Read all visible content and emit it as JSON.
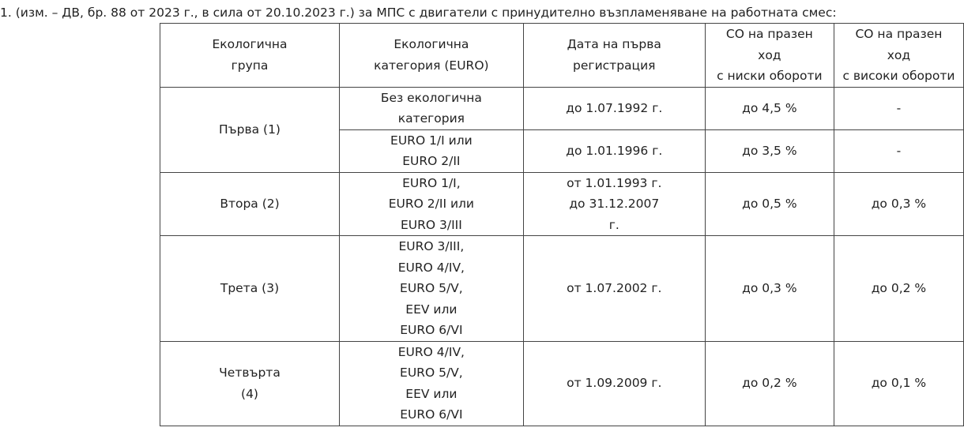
{
  "intro": "1. (изм. – ДВ, бр. 88 от 2023 г., в сила от 20.10.2023 г.) за МПС с двигатели с принудително възпламеняване на работната смес:",
  "table": {
    "header": [
      [
        "Екологична",
        "група"
      ],
      [
        "Екологична",
        "категория (EURO)"
      ],
      [
        "Дата на първа",
        "регистрация"
      ],
      [
        "CO на празен",
        "ход",
        "с ниски обороти"
      ],
      [
        "CO на празен",
        "ход",
        "с високи обороти"
      ]
    ],
    "rows": [
      [
        [
          "Първа (1)"
        ],
        [
          "Без екологична",
          "категория"
        ],
        [
          "до 1.07.1992 г."
        ],
        [
          "до 4,5 %"
        ],
        [
          "-"
        ]
      ],
      [
        [
          "EURO 1/I или",
          "EURO 2/II"
        ],
        [
          "до 1.01.1996 г."
        ],
        [
          "до 3,5 %"
        ],
        [
          "-"
        ]
      ],
      [
        [
          "Втора (2)"
        ],
        [
          "EURO 1/I,",
          "EURO 2/II или",
          "EURO 3/III"
        ],
        [
          "от 1.01.1993 г.",
          "до 31.12.2007",
          "г."
        ],
        [
          "до 0,5 %"
        ],
        [
          "до 0,3 %"
        ]
      ],
      [
        [
          "Трета (3)"
        ],
        [
          "EURO 3/III,",
          "EURO 4/IV,",
          "EURO 5/V,",
          "EEV или",
          "EURO 6/VI"
        ],
        [
          "от 1.07.2002 г."
        ],
        [
          "до 0,3 %"
        ],
        [
          "до 0,2 %"
        ]
      ],
      [
        [
          "Четвърта",
          "(4)"
        ],
        [
          "EURO 4/IV,",
          "EURO 5/V,",
          "EEV или",
          "EURO 6/VI"
        ],
        [
          "от 1.09.2009 г."
        ],
        [
          "до 0,2 %"
        ],
        [
          "до 0,1 %"
        ]
      ]
    ]
  }
}
